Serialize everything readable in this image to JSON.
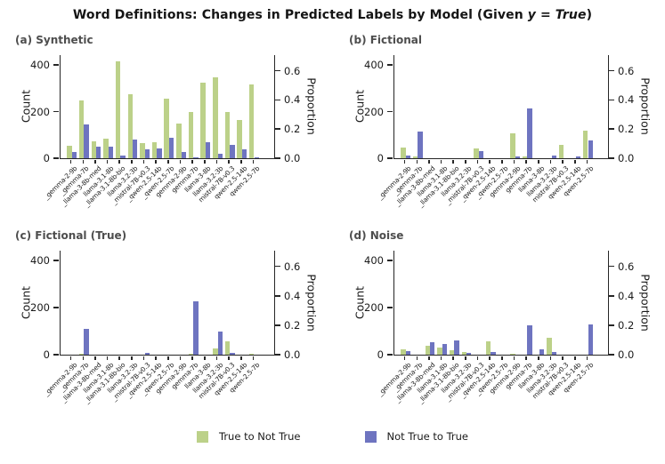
{
  "page_title": {
    "main": "Word Definitions: Changes in Predicted Labels by Model (Given ",
    "math": "y = True",
    "suffix": ")"
  },
  "axes": {
    "count_label": "Count",
    "proportion_label": "Proportion",
    "count_ticks": [
      "0",
      "200",
      "400"
    ],
    "proportion_ticks": [
      "0.0",
      "0.2",
      "0.4",
      "0.6"
    ]
  },
  "legend": {
    "items": [
      {
        "label": "True to Not True",
        "color": "#bcd189"
      },
      {
        "label": "Not True to True",
        "color": "#6e74c0"
      }
    ]
  },
  "chart_data": [
    {
      "type": "bar",
      "title": "(a) Synthetic",
      "categories": [
        "_gemma-2-9b",
        "_gemma-7b",
        "_llama-3-8b-med",
        "llama-3.1-8b",
        "_llama-3.1-8b-bio",
        "llama-3.2-3b",
        "_mistral-7B-v0.3",
        "_qwen-2.5-14b",
        "_qwen-2.5-7b",
        "gemma-2-9b",
        "gemma-7b",
        "llama-3-8b",
        "llama-3.2-3b",
        "mistral-7B-v0.3",
        "qwen-2.5-14b",
        "qwen-2.5-7b"
      ],
      "series": [
        {
          "name": "True to Not True",
          "color": "#bcd189",
          "values": [
            55,
            249,
            71,
            84,
            415,
            274,
            65,
            67,
            255,
            150,
            198,
            325,
            347,
            198,
            163,
            317
          ]
        },
        {
          "name": "Not True to True",
          "color": "#6e74c0",
          "values": [
            28,
            146,
            48,
            50,
            13,
            79,
            38,
            42,
            89,
            25,
            5,
            70,
            19,
            58,
            39,
            5
          ]
        }
      ],
      "ylabel": "Count",
      "y2label": "Proportion",
      "ylim": [
        0,
        442
      ],
      "count_ticks": [
        0,
        200,
        400
      ],
      "proportion_ticks": [
        0.0,
        0.2,
        0.4,
        0.6
      ],
      "counts_per_unit_proportion": 625
    },
    {
      "type": "bar",
      "title": "(b) Fictional",
      "categories": [
        "_gemma-2-9b",
        "_gemma-7b",
        "_llama-3-8b-med",
        "llama-3.1-8b",
        "_llama-3.1-8b-bio",
        "llama-3.2-3b",
        "_mistral-7B-v0.3",
        "_qwen-2.5-14b",
        "_qwen-2.5-7b",
        "gemma-2-9b",
        "gemma-7b",
        "llama-3-8b",
        "llama-3.2-3b",
        "mistral-7B-v0.3",
        "qwen-2.5-14b",
        "qwen-2.5-7b"
      ],
      "series": [
        {
          "name": "True to Not True",
          "color": "#bcd189",
          "values": [
            46,
            8,
            0,
            0,
            0,
            0,
            42,
            0,
            0,
            108,
            6,
            0,
            0,
            59,
            0,
            117
          ]
        },
        {
          "name": "Not True to True",
          "color": "#6e74c0",
          "values": [
            13,
            113,
            0,
            0,
            0,
            0,
            31,
            0,
            0,
            9,
            215,
            0,
            10,
            0,
            6,
            75
          ]
        }
      ],
      "ylabel": "Count",
      "y2label": "Proportion",
      "ylim": [
        0,
        442
      ],
      "count_ticks": [
        0,
        200,
        400
      ],
      "proportion_ticks": [
        0.0,
        0.2,
        0.4,
        0.6
      ],
      "counts_per_unit_proportion": 625
    },
    {
      "type": "bar",
      "title": "(c) Fictional (True)",
      "categories": [
        "_gemma-2-9b",
        "_gemma-7b",
        "_llama-3-8b-med",
        "llama-3.1-8b",
        "_llama-3.1-8b-bio",
        "llama-3.2-3b",
        "_mistral-7B-v0.3",
        "_qwen-2.5-14b",
        "_qwen-2.5-7b",
        "gemma-2-9b",
        "gemma-7b",
        "llama-3-8b",
        "llama-3.2-3b",
        "mistral-7B-v0.3",
        "qwen-2.5-14b",
        "qwen-2.5-7b"
      ],
      "series": [
        {
          "name": "True to Not True",
          "color": "#bcd189",
          "values": [
            0,
            5,
            0,
            0,
            0,
            0,
            0,
            0,
            0,
            0,
            5,
            0,
            28,
            55,
            0,
            5
          ]
        },
        {
          "name": "Not True to True",
          "color": "#6e74c0",
          "values": [
            0,
            111,
            0,
            0,
            0,
            0,
            6,
            0,
            0,
            0,
            228,
            0,
            98,
            7,
            0,
            0
          ]
        }
      ],
      "ylabel": "Count",
      "y2label": "Proportion",
      "ylim": [
        0,
        442
      ],
      "count_ticks": [
        0,
        200,
        400
      ],
      "proportion_ticks": [
        0.0,
        0.2,
        0.4,
        0.6
      ],
      "counts_per_unit_proportion": 625
    },
    {
      "type": "bar",
      "title": "(d) Noise",
      "categories": [
        "_gemma-2-9b",
        "_gemma-7b",
        "_llama-3-8b-med",
        "llama-3.1-8b",
        "_llama-3.1-8b-bio",
        "llama-3.2-3b",
        "_mistral-7B-v0.3",
        "_qwen-2.5-14b",
        "_qwen-2.5-7b",
        "gemma-2-9b",
        "gemma-7b",
        "llama-3-8b",
        "llama-3.2-3b",
        "mistral-7B-v0.3",
        "qwen-2.5-14b",
        "qwen-2.5-7b"
      ],
      "series": [
        {
          "name": "True to Not True",
          "color": "#bcd189",
          "values": [
            23,
            0,
            36,
            29,
            19,
            10,
            0,
            58,
            0,
            5,
            0,
            0,
            71,
            0,
            0,
            0
          ]
        },
        {
          "name": "Not True to True",
          "color": "#6e74c0",
          "values": [
            17,
            0,
            52,
            44,
            61,
            8,
            0,
            13,
            0,
            0,
            123,
            23,
            10,
            0,
            0,
            127
          ]
        }
      ],
      "ylabel": "Count",
      "y2label": "Proportion",
      "ylim": [
        0,
        442
      ],
      "count_ticks": [
        0,
        200,
        400
      ],
      "proportion_ticks": [
        0.0,
        0.2,
        0.4,
        0.6
      ],
      "counts_per_unit_proportion": 625
    }
  ]
}
